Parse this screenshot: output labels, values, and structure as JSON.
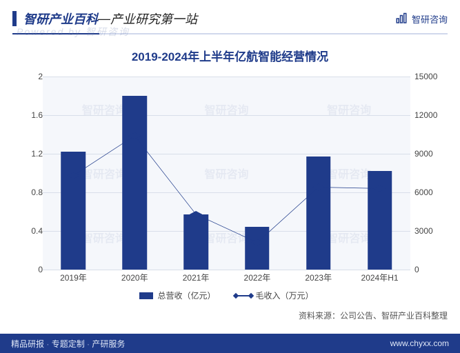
{
  "header": {
    "site_title": "智研产业百科",
    "separator": "—",
    "tagline": "产业研究第一站",
    "brand_right": "智研咨询",
    "watermark_top": "Powered by 智研咨询"
  },
  "chart": {
    "type": "bar+line",
    "title": "2019-2024年上半年亿航智能经营情况",
    "categories": [
      "2019年",
      "2020年",
      "2021年",
      "2022年",
      "2023年",
      "2024年H1"
    ],
    "bar_series": {
      "name": "总营收（亿元）",
      "values": [
        1.22,
        1.8,
        0.57,
        0.44,
        1.17,
        1.02
      ],
      "color": "#1f3b8a"
    },
    "line_series": {
      "name": "毛收入（万元）",
      "values": [
        7300,
        10400,
        4300,
        2100,
        6400,
        6300
      ],
      "color": "#1f3b8a",
      "marker": "diamond"
    },
    "y_left": {
      "min": 0,
      "max": 2,
      "step": 0.4,
      "label_fontsize": 12
    },
    "y_right": {
      "min": 0,
      "max": 15000,
      "step": 3000,
      "label_fontsize": 12
    },
    "background_color": "#f5f7fb",
    "grid_color": "#d8dee9",
    "legend_position": "bottom",
    "watermark_cell": "智研咨询"
  },
  "source": {
    "label": "资料来源：",
    "text": "公司公告、智研产业百科整理"
  },
  "footer": {
    "items": [
      "精品研报",
      "专题定制",
      "产研服务"
    ],
    "url": "www.chyxx.com"
  },
  "colors": {
    "brand": "#1f3b8a",
    "header_underline_light": "#d0d8ec",
    "chart_bg": "#f5f7fb",
    "grid": "#d8dee9",
    "text": "#444444",
    "footer_text": "#dfe7f7"
  }
}
